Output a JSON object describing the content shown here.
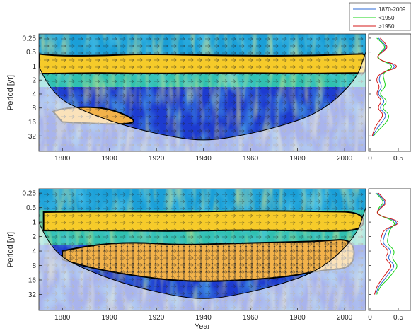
{
  "chart_data": [
    {
      "type": "heatmap",
      "title": "",
      "xlabel": "",
      "ylabel": "Period [yr]",
      "x_ticks": [
        1880,
        1900,
        1920,
        1940,
        1960,
        1980,
        2000
      ],
      "y_ticks": [
        "0.25",
        "0.5",
        "1",
        "2",
        "4",
        "8",
        "16",
        "32"
      ],
      "y_tick_values": [
        0.25,
        0.5,
        1,
        2,
        4,
        8,
        16,
        32
      ],
      "xlim": [
        1870,
        2009
      ],
      "ylim_log2": [
        -2.3,
        6.1
      ],
      "scale": "log2",
      "significance_regions": [
        {
          "x": [
            1870,
            1876,
            1895,
            1915,
            1950,
            1985,
            2006,
            2009,
            2009,
            2006,
            1985,
            1950,
            1915,
            1895,
            1876,
            1870
          ],
          "y": [
            0.55,
            0.6,
            0.6,
            0.55,
            0.6,
            0.6,
            0.55,
            0.55,
            1.45,
            1.4,
            1.45,
            1.4,
            1.45,
            1.4,
            1.45,
            1.45
          ]
        },
        {
          "x": [
            1876,
            1880,
            1895,
            1905,
            1912,
            1905,
            1890,
            1880
          ],
          "y": [
            9.5,
            8,
            7.5,
            10,
            16,
            18,
            17,
            16
          ]
        }
      ],
      "cone_of_influence": {
        "x": [
          1870,
          1875,
          1890,
          1910,
          1930,
          1940,
          1950,
          1970,
          1990,
          2005,
          2009
        ],
        "y": [
          1,
          4,
          10,
          22,
          36,
          40,
          36,
          22,
          10,
          2,
          0.5
        ]
      }
    },
    {
      "type": "heatmap",
      "title": "",
      "xlabel": "Year",
      "ylabel": "Period [yr]",
      "x_ticks": [
        1880,
        1900,
        1920,
        1940,
        1960,
        1980,
        2000
      ],
      "y_ticks": [
        "0.25",
        "0.5",
        "1",
        "2",
        "4",
        "8",
        "16",
        "32"
      ],
      "y_tick_values": [
        0.25,
        0.5,
        1,
        2,
        4,
        8,
        16,
        32
      ],
      "xlim": [
        1870,
        2009
      ],
      "ylim_log2": [
        -2.3,
        6.1
      ],
      "scale": "log2",
      "significance_regions": [
        {
          "x": [
            1872,
            1900,
            1930,
            1960,
            1990,
            2008,
            2008,
            1990,
            1960,
            1930,
            1900,
            1872
          ],
          "y": [
            0.62,
            0.6,
            0.62,
            0.58,
            0.6,
            0.62,
            1.5,
            1.55,
            1.45,
            1.55,
            1.5,
            1.5
          ]
        },
        {
          "x": [
            1880,
            1892,
            1910,
            1930,
            1950,
            1975,
            1990,
            2004,
            2004,
            1990,
            1975,
            1950,
            1930,
            1910,
            1892,
            1880
          ],
          "y": [
            4,
            3,
            2.6,
            3,
            2.8,
            2.6,
            2.5,
            2.2,
            9,
            10,
            14,
            17,
            17,
            13,
            9,
            6
          ]
        }
      ],
      "cone_of_influence": {
        "x": [
          1870,
          1875,
          1890,
          1910,
          1930,
          1940,
          1950,
          1970,
          1990,
          2005,
          2009
        ],
        "y": [
          1,
          4,
          10,
          22,
          36,
          40,
          36,
          22,
          10,
          2,
          0.5
        ]
      }
    },
    {
      "type": "line",
      "title": "",
      "orientation": "vertical",
      "x_ticks": [
        "0",
        "0.5"
      ],
      "xlim": [
        0,
        0.7
      ],
      "periods": [
        0.25,
        0.3,
        0.4,
        0.5,
        0.7,
        1,
        1.4,
        2,
        2.8,
        4,
        5.6,
        8,
        11,
        16,
        22,
        32
      ],
      "legend_position": "top-right",
      "series": [
        {
          "name": "1870-2009",
          "color": "#2b6ad6",
          "values": [
            0.15,
            0.22,
            0.3,
            0.2,
            0.1,
            0.52,
            0.2,
            0.15,
            0.22,
            0.12,
            0.28,
            0.15,
            0.3,
            0.22,
            0.12,
            0.05
          ]
        },
        {
          "name": "<1950",
          "color": "#18d418",
          "values": [
            0.12,
            0.2,
            0.28,
            0.18,
            0.12,
            0.45,
            0.22,
            0.25,
            0.28,
            0.15,
            0.32,
            0.2,
            0.35,
            0.3,
            0.18,
            0.06
          ]
        },
        {
          "name": ">1950",
          "color": "#d41818",
          "values": [
            0.18,
            0.25,
            0.32,
            0.22,
            0.08,
            0.58,
            0.18,
            0.1,
            0.18,
            0.1,
            0.22,
            0.12,
            0.25,
            0.15,
            0.08,
            0.04
          ]
        }
      ]
    },
    {
      "type": "line",
      "title": "",
      "orientation": "vertical",
      "x_ticks": [
        "0",
        "0.5"
      ],
      "xlim": [
        0,
        0.7
      ],
      "periods": [
        0.25,
        0.3,
        0.4,
        0.5,
        0.7,
        1,
        1.4,
        2,
        2.8,
        4,
        5.6,
        8,
        11,
        16,
        22,
        32
      ],
      "series": [
        {
          "name": "1870-2009",
          "color": "#2b6ad6",
          "values": [
            0.12,
            0.2,
            0.28,
            0.18,
            0.1,
            0.55,
            0.3,
            0.25,
            0.22,
            0.4,
            0.3,
            0.45,
            0.35,
            0.25,
            0.15,
            0.1
          ]
        },
        {
          "name": "<1950",
          "color": "#18d418",
          "values": [
            0.1,
            0.18,
            0.25,
            0.15,
            0.12,
            0.48,
            0.35,
            0.32,
            0.3,
            0.45,
            0.38,
            0.5,
            0.42,
            0.3,
            0.18,
            0.12
          ]
        },
        {
          "name": ">1950",
          "color": "#d41818",
          "values": [
            0.15,
            0.22,
            0.3,
            0.2,
            0.08,
            0.6,
            0.25,
            0.2,
            0.18,
            0.35,
            0.25,
            0.4,
            0.3,
            0.2,
            0.12,
            0.08
          ]
        }
      ]
    }
  ]
}
